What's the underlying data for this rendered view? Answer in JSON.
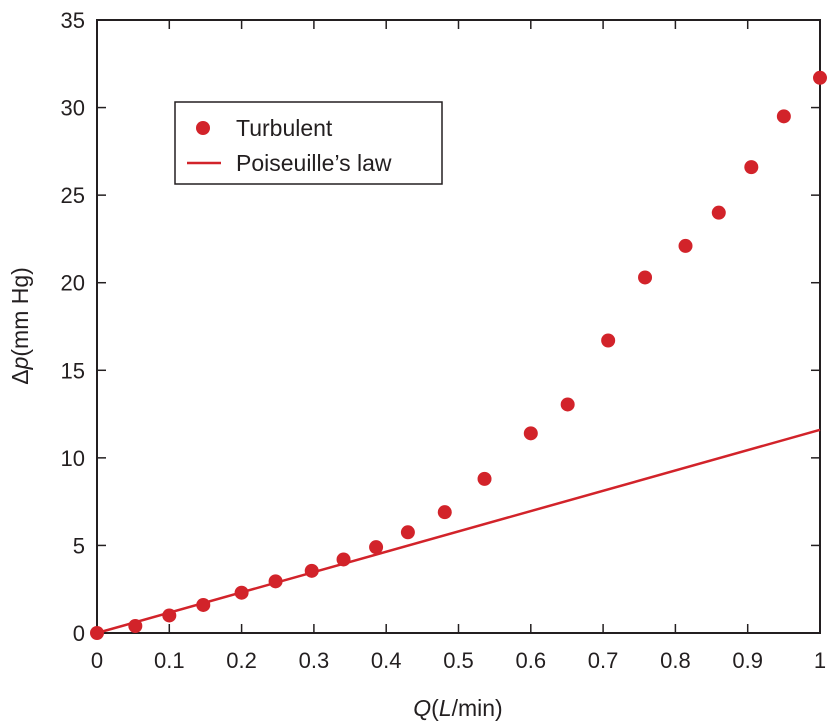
{
  "chart_data": {
    "type": "scatter",
    "title": "",
    "xlabel": {
      "italic": "Q",
      "open": "(",
      "italic_unit": "L",
      "unit_rest": "/min)"
    },
    "ylabel": {
      "delta": "Δ",
      "italic": "p",
      "unit": "(mm Hg)"
    },
    "xlim": [
      0,
      1
    ],
    "ylim": [
      0,
      35
    ],
    "xticks": [
      0,
      0.1,
      0.2,
      0.3,
      0.4,
      0.5,
      0.6,
      0.7,
      0.8,
      0.9,
      1
    ],
    "xtick_labels": [
      "0",
      "0.1",
      "0.2",
      "0.3",
      "0.4",
      "0.5",
      "0.6",
      "0.7",
      "0.8",
      "0.9",
      "1"
    ],
    "yticks": [
      0,
      5,
      10,
      15,
      20,
      25,
      30,
      35
    ],
    "ytick_labels": [
      "0",
      "5",
      "10",
      "15",
      "20",
      "25",
      "30",
      "35"
    ],
    "grid": false,
    "legend_position": "top-left",
    "series": [
      {
        "name": "Turbulent",
        "kind": "scatter",
        "color": "#d2232a",
        "points": [
          [
            0,
            0
          ],
          [
            0.053,
            0.4
          ],
          [
            0.1,
            1.0
          ],
          [
            0.147,
            1.6
          ],
          [
            0.2,
            2.3
          ],
          [
            0.247,
            2.95
          ],
          [
            0.297,
            3.55
          ],
          [
            0.341,
            4.2
          ],
          [
            0.386,
            4.9
          ],
          [
            0.43,
            5.75
          ],
          [
            0.481,
            6.9
          ],
          [
            0.536,
            8.8
          ],
          [
            0.6,
            11.4
          ],
          [
            0.651,
            13.05
          ],
          [
            0.707,
            16.7
          ],
          [
            0.758,
            20.3
          ],
          [
            0.814,
            22.1
          ],
          [
            0.86,
            24.0
          ],
          [
            0.905,
            26.6
          ],
          [
            0.95,
            29.5
          ],
          [
            1.0,
            31.7
          ]
        ]
      },
      {
        "name": "Poiseuille’s law",
        "kind": "line",
        "color": "#d2232a",
        "points": [
          [
            0,
            0
          ],
          [
            1.0,
            11.6
          ]
        ]
      }
    ]
  }
}
